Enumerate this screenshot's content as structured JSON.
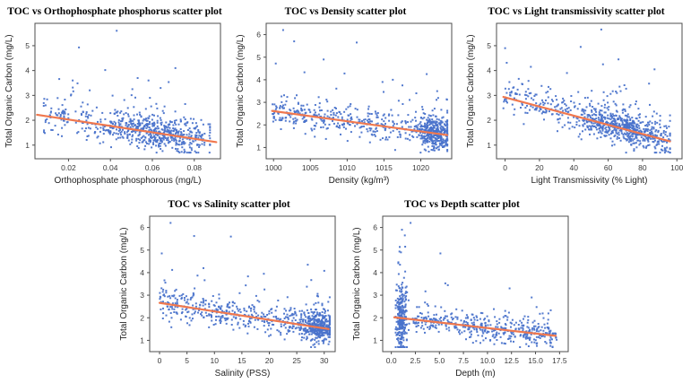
{
  "page": {
    "background": "#ffffff"
  },
  "colors": {
    "point": "#4A73CB",
    "trend": "#F0784E",
    "frame": "#4d4d4d",
    "tick_text": "#3a3a3a",
    "label_text": "#1f1f1f",
    "title_text": "#000000"
  },
  "ylabel_shared": "Total Organic Carbon (mg/L)",
  "chart_data": [
    {
      "id": "orthophosphate",
      "row": "top-row",
      "type": "scatter",
      "title": "TOC vs Orthophosphate phosphorus scatter plot",
      "xlabel": "Orthophosphate phosphorous (mg/L)",
      "ylabel": "Total Organic Carbon (mg/L)",
      "xlim": [
        0.004,
        0.0925
      ],
      "ylim": [
        0.45,
        5.9
      ],
      "xtick_values": [
        0.02,
        0.04,
        0.06,
        0.08
      ],
      "xtick_labels": [
        "0.02",
        "0.04",
        "0.06",
        "0.08"
      ],
      "ytick_values": [
        1,
        2,
        3,
        4,
        5
      ],
      "ytick_labels": [
        "1",
        "2",
        "3",
        "4",
        "5"
      ],
      "trend": {
        "x1": 0.005,
        "y1": 2.22,
        "x2": 0.0905,
        "y2": 1.12
      },
      "n": 680,
      "seed": 101,
      "noise_sd": 0.32,
      "tail_prob": 0.14,
      "tail_scale": 0.8,
      "y_clip": [
        0.7,
        5.65
      ],
      "clusters": [
        {
          "w": 0.5,
          "dist": "uniform",
          "a": 0.008,
          "b": 0.085,
          "spread": 1
        },
        {
          "w": 0.5,
          "dist": "gauss",
          "mean": 0.064,
          "sd": 0.012,
          "clamp": [
            0.04,
            0.0875
          ],
          "spread": 1
        }
      ],
      "outliers": [
        [
          0.043,
          5.6
        ],
        [
          0.025,
          4.93
        ],
        [
          0.071,
          4.1
        ],
        [
          0.0375,
          4.02
        ],
        [
          0.053,
          3.7
        ],
        [
          0.022,
          3.6
        ]
      ]
    },
    {
      "id": "density",
      "row": "top-row",
      "type": "scatter",
      "title": "TOC vs Density scatter plot",
      "xlabel": "Density (kg/m³)",
      "ylabel": "Total Organic Carbon (mg/L)",
      "xlim": [
        999,
        1024.2
      ],
      "ylim": [
        0.5,
        6.5
      ],
      "xtick_values": [
        1000,
        1005,
        1010,
        1015,
        1020
      ],
      "xtick_labels": [
        "1000",
        "1005",
        "1010",
        "1015",
        "1020"
      ],
      "ytick_values": [
        1,
        2,
        3,
        4,
        5,
        6
      ],
      "ytick_labels": [
        "1",
        "2",
        "3",
        "4",
        "5",
        "6"
      ],
      "trend": {
        "x1": 999.8,
        "y1": 2.62,
        "x2": 1023.6,
        "y2": 1.55
      },
      "n": 760,
      "seed": 202,
      "noise_sd": 0.33,
      "tail_prob": 0.13,
      "tail_scale": 0.8,
      "y_clip": [
        0.7,
        6.3
      ],
      "clusters": [
        {
          "w": 0.46,
          "dist": "uniform",
          "a": 999.8,
          "b": 1021,
          "spread": 1
        },
        {
          "w": 0.54,
          "dist": "gauss",
          "mean": 1021.9,
          "sd": 1.1,
          "clamp": [
            1016,
            1023.6
          ],
          "spread": 1
        }
      ],
      "outliers": [
        [
          1001.3,
          6.2
        ],
        [
          1002.8,
          5.7
        ],
        [
          1011.3,
          5.65
        ],
        [
          1006.8,
          4.9
        ],
        [
          1000.3,
          4.72
        ],
        [
          1020.8,
          4.25
        ],
        [
          1016.2,
          4.0
        ],
        [
          1014.8,
          3.9
        ],
        [
          1017.5,
          3.75
        ]
      ]
    },
    {
      "id": "light-transmissivity",
      "row": "top-row",
      "type": "scatter",
      "title": "TOC vs Light transmissivity scatter plot",
      "xlabel": "Light Transmissivity (% Light)",
      "ylabel": "Total Organic Carbon (mg/L)",
      "xlim": [
        -5,
        103
      ],
      "ylim": [
        0.45,
        5.9
      ],
      "xtick_values": [
        0,
        20,
        40,
        60,
        80,
        100
      ],
      "xtick_labels": [
        "0",
        "20",
        "40",
        "60",
        "80",
        "100"
      ],
      "ytick_values": [
        1,
        2,
        3,
        4,
        5
      ],
      "ytick_labels": [
        "1",
        "2",
        "3",
        "4",
        "5"
      ],
      "trend": {
        "x1": -1,
        "y1": 2.94,
        "x2": 96,
        "y2": 1.15
      },
      "n": 800,
      "seed": 303,
      "noise_sd": 0.32,
      "tail_prob": 0.13,
      "tail_scale": 0.78,
      "y_clip": [
        0.7,
        5.7
      ],
      "clusters": [
        {
          "w": 0.38,
          "dist": "uniform",
          "a": -1,
          "b": 95,
          "spread": 1
        },
        {
          "w": 0.62,
          "dist": "gauss",
          "mean": 70,
          "sd": 14,
          "clamp": [
            30,
            96
          ],
          "spread": 1
        }
      ],
      "outliers": [
        [
          56,
          5.65
        ],
        [
          44,
          4.95
        ],
        [
          0,
          4.9
        ],
        [
          15,
          4.15
        ],
        [
          57,
          4.25
        ],
        [
          87,
          4.05
        ],
        [
          66,
          4.45
        ],
        [
          36,
          3.9
        ]
      ]
    },
    {
      "id": "salinity",
      "row": "bottom-row",
      "type": "scatter",
      "title": "TOC vs  Salinity scatter plot",
      "xlabel": "Salinity (PSS)",
      "ylabel": "Total Organic Carbon (mg/L)",
      "xlim": [
        -1.8,
        32
      ],
      "ylim": [
        0.5,
        6.5
      ],
      "xtick_values": [
        0,
        5,
        10,
        15,
        20,
        25,
        30
      ],
      "xtick_labels": [
        "0",
        "5",
        "10",
        "15",
        "20",
        "25",
        "30"
      ],
      "ytick_values": [
        1,
        2,
        3,
        4,
        5,
        6
      ],
      "ytick_labels": [
        "1",
        "2",
        "3",
        "4",
        "5",
        "6"
      ],
      "trend": {
        "x1": 0,
        "y1": 2.66,
        "x2": 30.8,
        "y2": 1.5
      },
      "n": 800,
      "seed": 404,
      "noise_sd": 0.33,
      "tail_prob": 0.13,
      "tail_scale": 0.8,
      "y_clip": [
        0.7,
        6.3
      ],
      "clusters": [
        {
          "w": 0.5,
          "dist": "uniform",
          "a": 0,
          "b": 27,
          "spread": 1
        },
        {
          "w": 0.5,
          "dist": "gauss",
          "mean": 29,
          "sd": 1.5,
          "clamp": [
            25.5,
            31
          ],
          "spread": 1
        }
      ],
      "outliers": [
        [
          2,
          6.2
        ],
        [
          13,
          5.6
        ],
        [
          6.3,
          5.62
        ],
        [
          0.4,
          4.85
        ],
        [
          8,
          4.2
        ],
        [
          27,
          4.35
        ],
        [
          2.3,
          4.12
        ],
        [
          30,
          4.08
        ],
        [
          19,
          3.95
        ]
      ]
    },
    {
      "id": "depth",
      "row": "bottom-row",
      "type": "scatter",
      "title": "TOC vs Depth scatter plot",
      "xlabel": "Depth (m)",
      "ylabel": "Total Organic Carbon (mg/L)",
      "xlim": [
        -0.9,
        18.4
      ],
      "ylim": [
        0.5,
        6.5
      ],
      "xtick_values": [
        0,
        2.5,
        5,
        7.5,
        10,
        12.5,
        15,
        17.5
      ],
      "xtick_labels": [
        "0.0",
        "2.5",
        "5.0",
        "7.5",
        "10.0",
        "12.5",
        "15.0",
        "17.5"
      ],
      "ytick_values": [
        1,
        2,
        3,
        4,
        5,
        6
      ],
      "ytick_labels": [
        "1",
        "2",
        "3",
        "4",
        "5",
        "6"
      ],
      "trend": {
        "x1": 0.3,
        "y1": 2.02,
        "x2": 17.1,
        "y2": 1.2
      },
      "n": 700,
      "seed": 505,
      "noise_sd": 0.32,
      "tail_prob": 0.12,
      "tail_scale": 0.75,
      "y_clip": [
        0.7,
        6.3
      ],
      "clusters": [
        {
          "w": 0.42,
          "dist": "gauss",
          "mean": 1.05,
          "sd": 0.3,
          "clamp": [
            0.45,
            2.1
          ],
          "spread": 2.0
        },
        {
          "w": 0.58,
          "dist": "uniform",
          "a": 2.2,
          "b": 17.2,
          "spread": 0.9
        }
      ],
      "outliers": [
        [
          2.0,
          6.2
        ],
        [
          1.1,
          5.9
        ],
        [
          1.4,
          5.65
        ],
        [
          5.1,
          4.85
        ],
        [
          1.0,
          4.9
        ],
        [
          12.3,
          3.3
        ],
        [
          14.6,
          2.9
        ],
        [
          0.9,
          4.35
        ]
      ]
    }
  ]
}
